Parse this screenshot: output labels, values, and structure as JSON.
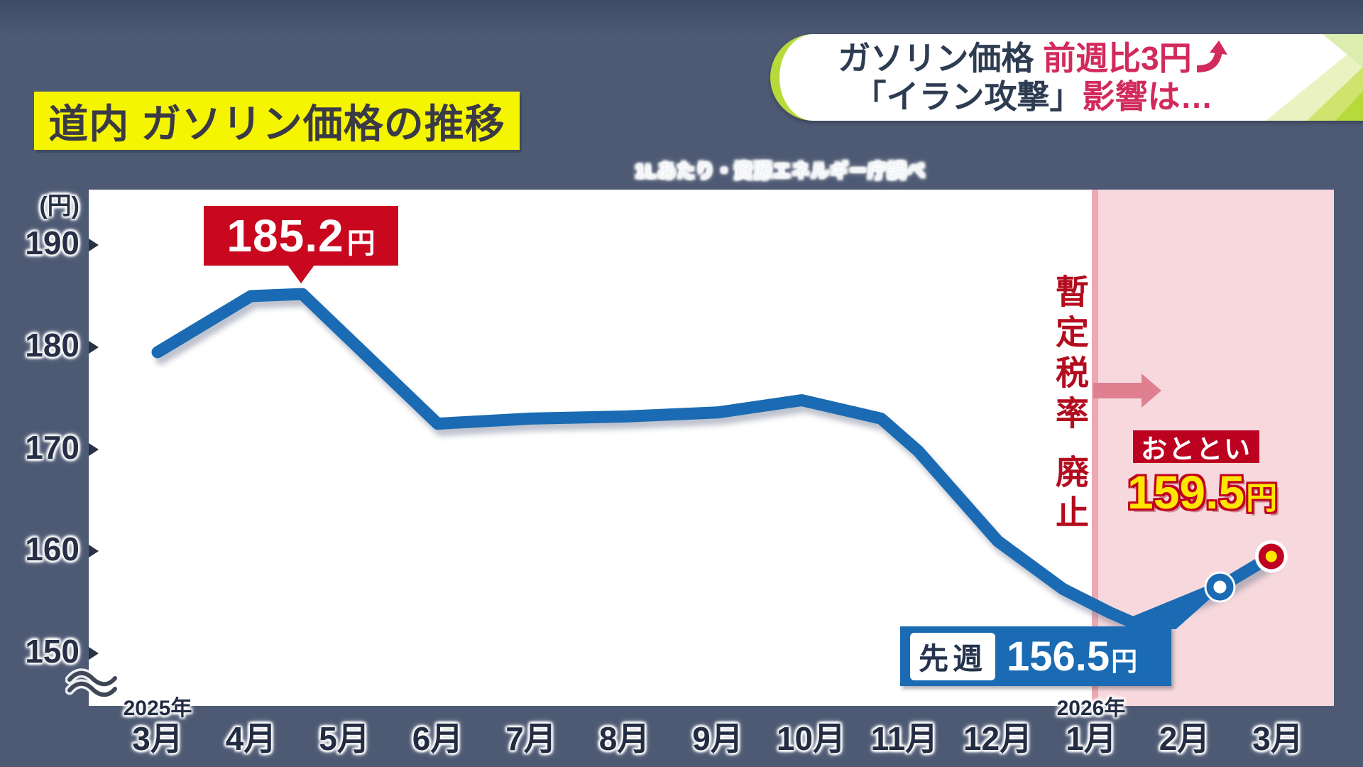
{
  "banner": {
    "line1_dark": "ガソリン価格 ",
    "line1_accent": "前週比3円",
    "line1_arrow_icon": "curved-up-arrow",
    "line2_dark": "「イラン攻撃」",
    "line2_accent": "影響は…"
  },
  "title": "道内 ガソリン価格の推移",
  "source_note": "1Lあたり・資源エネルギー庁調べ",
  "chart_data": {
    "type": "line",
    "title": "道内 ガソリン価格の推移",
    "unit": "円",
    "y_axis_unit_label": "(円)",
    "yticks": [
      190,
      180,
      170,
      160,
      150
    ],
    "ylim": [
      150,
      190
    ],
    "y_axis_break_below_150": true,
    "grid": false,
    "x_labels": [
      "3月",
      "4月",
      "5月",
      "6月",
      "7月",
      "8月",
      "9月",
      "10月",
      "11月",
      "12月",
      "1月",
      "2月",
      "3月"
    ],
    "year_labels": [
      {
        "text": "2025年",
        "month_index": 0
      },
      {
        "text": "2026年",
        "month_index": 10
      }
    ],
    "highlight_zone": {
      "from_month_index": 9.8,
      "to_month_index": 12.55,
      "meaning": "暫定税率 廃止"
    },
    "points": [
      {
        "month_index": 0,
        "value": 179.5
      },
      {
        "month_index": 1,
        "value": 185.0
      },
      {
        "month_index": 1.55,
        "value": 185.2,
        "annotation": "185.2円"
      },
      {
        "month_index": 3,
        "value": 172.5
      },
      {
        "month_index": 4,
        "value": 173.0
      },
      {
        "month_index": 5,
        "value": 173.2
      },
      {
        "month_index": 6,
        "value": 173.6
      },
      {
        "month_index": 6.9,
        "value": 174.8
      },
      {
        "month_index": 7.75,
        "value": 173.0
      },
      {
        "month_index": 8.15,
        "value": 169.8
      },
      {
        "month_index": 9,
        "value": 161.0
      },
      {
        "month_index": 9.7,
        "value": 156.3
      },
      {
        "month_index": 10.2,
        "value": 154.0
      },
      {
        "month_index": 10.45,
        "value": 153.0
      },
      {
        "month_index": 11.38,
        "value": 156.5,
        "dot": "white",
        "annotation": "先週 156.5円"
      },
      {
        "month_index": 11.93,
        "value": 159.5,
        "dot": "yellow",
        "annotation": "おととい 159.5円"
      }
    ]
  },
  "annotations": {
    "peak": {
      "value_text": "185.2",
      "unit_text": "円",
      "value": 185.2
    },
    "tax_note": {
      "line1": "暫定税率",
      "line2": "廃止"
    },
    "day_before_yesterday": {
      "tag": "おととい",
      "value_text": "159.5",
      "unit_text": "円",
      "value": 159.5
    },
    "last_week": {
      "tag": "先週",
      "value_text": "156.5",
      "unit_text": "円",
      "value": 156.5
    }
  },
  "colors": {
    "background": "#4e5a74",
    "line_blue": "#1a6bb3",
    "callout_red": "#c9081f",
    "dark_red_box": "#bc0020",
    "accent_crimson": "#d22a5c",
    "title_yellow": "#f6f500",
    "highlight_yellow": "#ffe600",
    "pink_zone": "#f7d8dc",
    "pink_zone_edge": "#eca9b4",
    "tax_text_red": "#b30c1e",
    "arrow_rose": "#e07f90",
    "banner_green": "#b7da3b",
    "navy_text": "#2e3c52",
    "axis_text": "#252f45"
  }
}
